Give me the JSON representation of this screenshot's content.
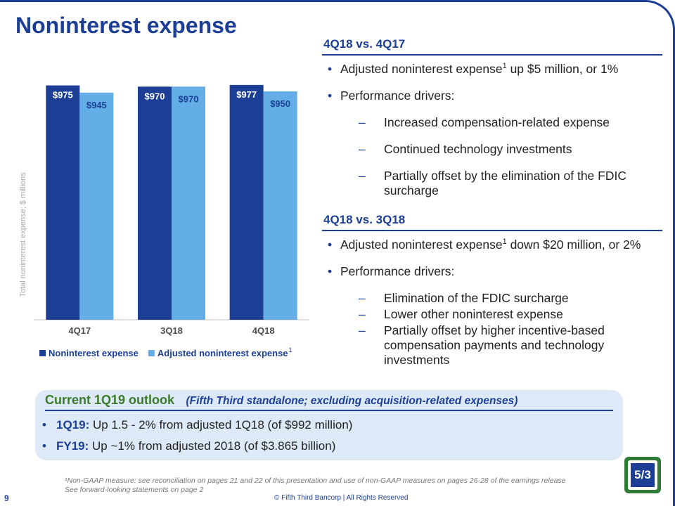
{
  "title": "Noninterest expense",
  "section1": {
    "heading": "4Q18 vs. 4Q17",
    "bullet1_pre": "Adjusted noninterest expense",
    "bullet1_sup": "1",
    "bullet1_post": " up $5 million, or 1%",
    "bullet2": "Performance drivers:",
    "subs": [
      "Increased compensation-related expense",
      "Continued technology investments",
      "Partially offset by the elimination of the FDIC surcharge"
    ]
  },
  "section2": {
    "heading": "4Q18 vs. 3Q18",
    "bullet1_pre": "Adjusted noninterest expense",
    "bullet1_sup": "1",
    "bullet1_post": " down $20 million, or 2%",
    "bullet2": "Performance drivers:",
    "subs": [
      "Elimination of the FDIC surcharge",
      "Lower other noninterest expense",
      "Partially offset by higher incentive-based compensation payments and technology investments"
    ]
  },
  "outlook": {
    "title": "Current 1Q19 outlook",
    "subtitle": "(Fifth Third standalone; excluding acquisition-related expenses)",
    "items": [
      {
        "label": "1Q19:",
        "text": " Up 1.5 - 2% from adjusted 1Q18 (of $992 million)"
      },
      {
        "label": "FY19:",
        "text": " Up ~1% from adjusted 2018 (of $3.865 billion)"
      }
    ]
  },
  "footnote": {
    "line1": "¹Non-GAAP measure: see reconciliation on pages 21 and 22 of this presentation and use of non-GAAP measures on pages 26-28 of the earnings release",
    "line2": "See forward-looking statements on page 2"
  },
  "page_number": "9",
  "copyright": "© Fifth Third Bancorp | All Rights Reserved",
  "logo_text": "5/3",
  "colors": {
    "primary": "#1c3f95",
    "secondary": "#63aee6",
    "green": "#3a7a2a"
  },
  "chart_data": {
    "type": "bar",
    "categories": [
      "4Q17",
      "3Q18",
      "4Q18"
    ],
    "series": [
      {
        "name": "Noninterest expense",
        "values": [
          975,
          970,
          977
        ],
        "labels": [
          "$975",
          "$970",
          "$977"
        ],
        "color": "#1c3f95"
      },
      {
        "name": "Adjusted noninterest expense",
        "values": [
          945,
          970,
          950
        ],
        "labels": [
          "$945",
          "$970",
          "$950"
        ],
        "color": "#63aee6"
      }
    ],
    "legend_sup": "1",
    "ylabel": "Total noninterest expense; $ millions",
    "ylim": [
      0,
      1000
    ],
    "legend_position": "bottom"
  }
}
